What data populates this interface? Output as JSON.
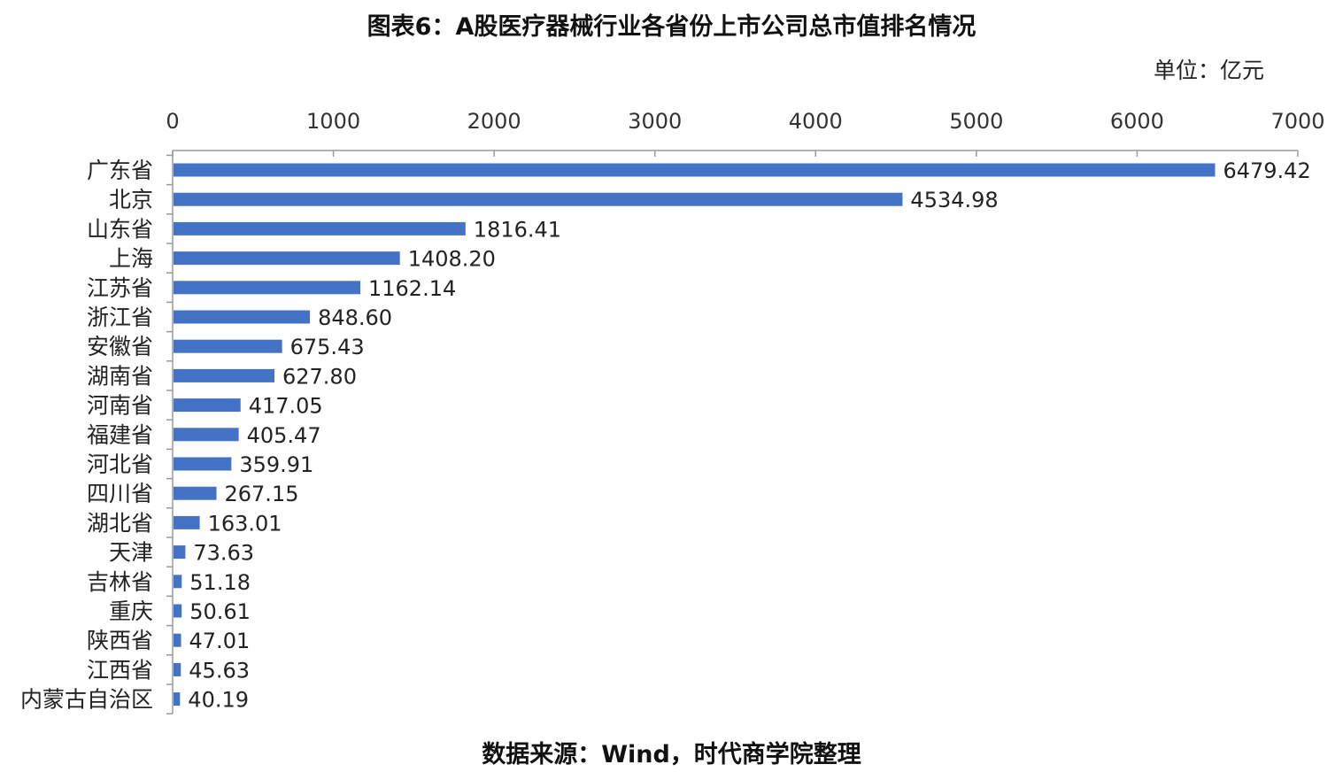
{
  "header": {
    "title": "图表6：A股医疗器械行业各省份上市公司总市值排名情况",
    "unit": "单位：亿元"
  },
  "footer": {
    "source": "数据来源：Wind，时代商学院整理"
  },
  "colors": {
    "bar": "#4472C4",
    "axis": "#9a9a9a"
  },
  "chart_data": {
    "type": "bar",
    "orientation": "horizontal",
    "categories": [
      "广东省",
      "北京",
      "山东省",
      "上海",
      "江苏省",
      "浙江省",
      "安徽省",
      "湖南省",
      "河南省",
      "福建省",
      "河北省",
      "四川省",
      "湖北省",
      "天津",
      "吉林省",
      "重庆",
      "陕西省",
      "江西省",
      "内蒙古自治区"
    ],
    "values": [
      6479.42,
      4534.98,
      1816.41,
      1408.2,
      1162.14,
      848.6,
      675.43,
      627.8,
      417.05,
      405.47,
      359.91,
      267.15,
      163.01,
      73.63,
      51.18,
      50.61,
      47.01,
      45.63,
      40.19
    ],
    "value_labels": [
      "6479.42",
      "4534.98",
      "1816.41",
      "1408.20",
      "1162.14",
      "848.60",
      "675.43",
      "627.80",
      "417.05",
      "405.47",
      "359.91",
      "267.15",
      "163.01",
      "73.63",
      "51.18",
      "50.61",
      "47.01",
      "45.63",
      "40.19"
    ],
    "xlim": [
      0,
      7000
    ],
    "x_ticks": [
      0,
      1000,
      2000,
      3000,
      4000,
      5000,
      6000,
      7000
    ],
    "x_axis_position": "top",
    "grid": false,
    "legend": "none"
  }
}
